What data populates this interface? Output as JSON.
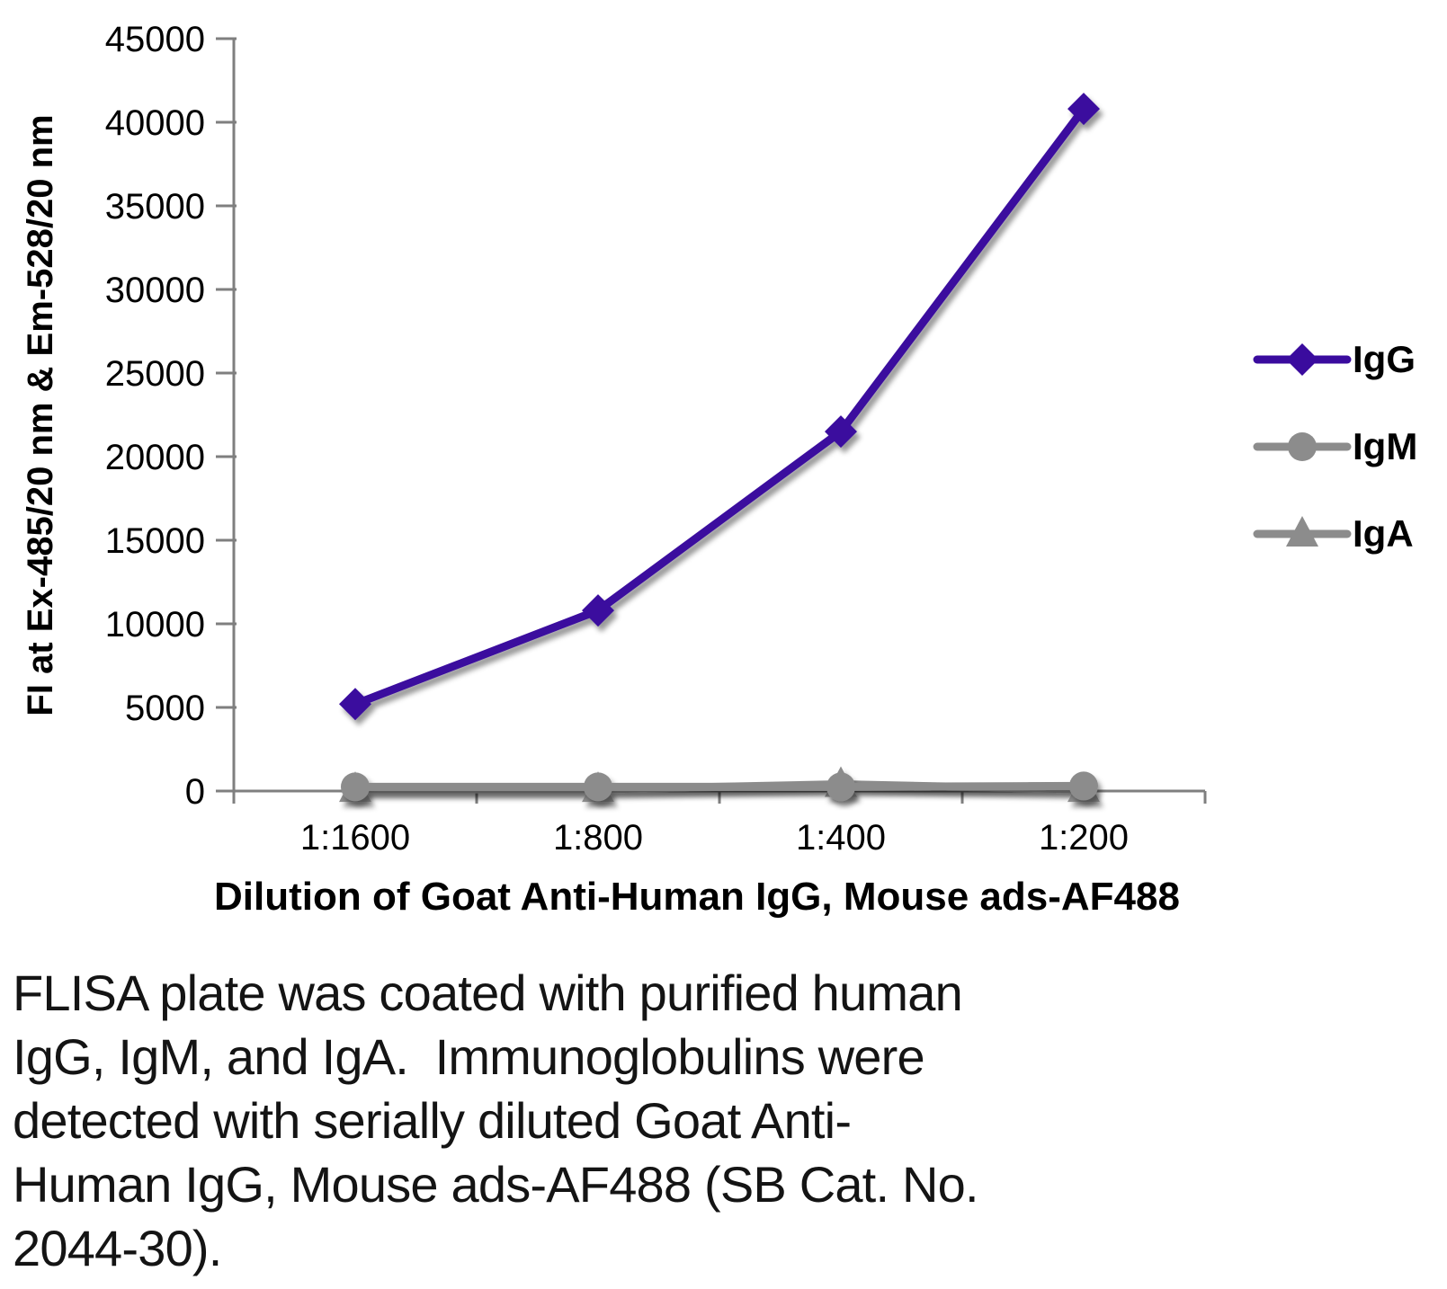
{
  "chart_data": {
    "type": "line",
    "title": "",
    "categories": [
      "1:1600",
      "1:800",
      "1:400",
      "1:200"
    ],
    "series": [
      {
        "name": "IgG",
        "marker": "diamond",
        "color": "#3A0B9E",
        "values": [
          5200,
          10800,
          21500,
          40800
        ]
      },
      {
        "name": "IgM",
        "marker": "circle",
        "color": "#8C8C8C",
        "values": [
          250,
          250,
          250,
          300
        ]
      },
      {
        "name": "IgA",
        "marker": "triangle",
        "color": "#8C8C8C",
        "values": [
          100,
          100,
          400,
          100
        ]
      }
    ],
    "xlabel": "Dilution of Goat Anti-Human IgG, Mouse ads-AF488",
    "ylabel": "FI at Ex-485/20 nm & Em-528/20 nm",
    "ylim": [
      0,
      45000
    ],
    "y_ticks": [
      0,
      5000,
      10000,
      15000,
      20000,
      25000,
      30000,
      35000,
      40000,
      45000
    ],
    "grid": "horizontal-only",
    "legend_position": "right",
    "legend_entries": [
      "IgG",
      "IgM",
      "IgA"
    ]
  },
  "caption": {
    "lines": [
      "FLISA plate was coated with purified human",
      "IgG, IgM, and IgA.  Immunoglobulins were",
      "detected with serially diluted Goat Anti-",
      "Human IgG, Mouse ads-AF488 (SB Cat. No.",
      "2044-30)."
    ]
  },
  "style": {
    "background": "#FFFFFF",
    "grid_color": "#9C9C9C",
    "axis_color": "#7F7F7F",
    "tick_text_color": "#000000",
    "accent_purple": "#3A0B9E",
    "series_gray": "#8C8C8C"
  }
}
